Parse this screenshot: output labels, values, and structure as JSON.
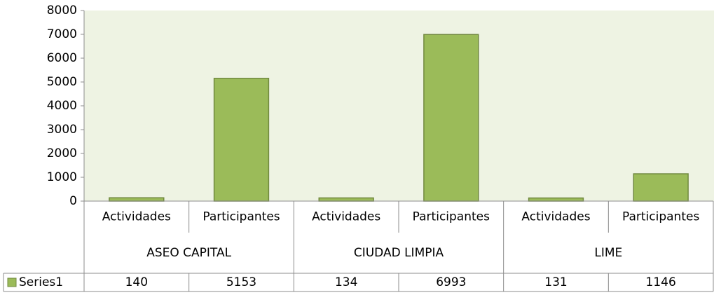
{
  "chart_data": {
    "type": "bar",
    "categories": [
      "Actividades",
      "Participantes",
      "Actividades",
      "Participantes",
      "Actividades",
      "Participantes"
    ],
    "groups": [
      "ASEO CAPITAL",
      "CIUDAD LIMPIA",
      "LIME"
    ],
    "series": [
      {
        "name": "Series1",
        "color": "#9bbb59",
        "values": [
          140,
          5153,
          134,
          6993,
          131,
          1146
        ]
      }
    ],
    "ylim": [
      0,
      8000
    ],
    "yticks": [
      0,
      1000,
      2000,
      3000,
      4000,
      5000,
      6000,
      7000,
      8000
    ],
    "grid": false,
    "data_table": true
  }
}
